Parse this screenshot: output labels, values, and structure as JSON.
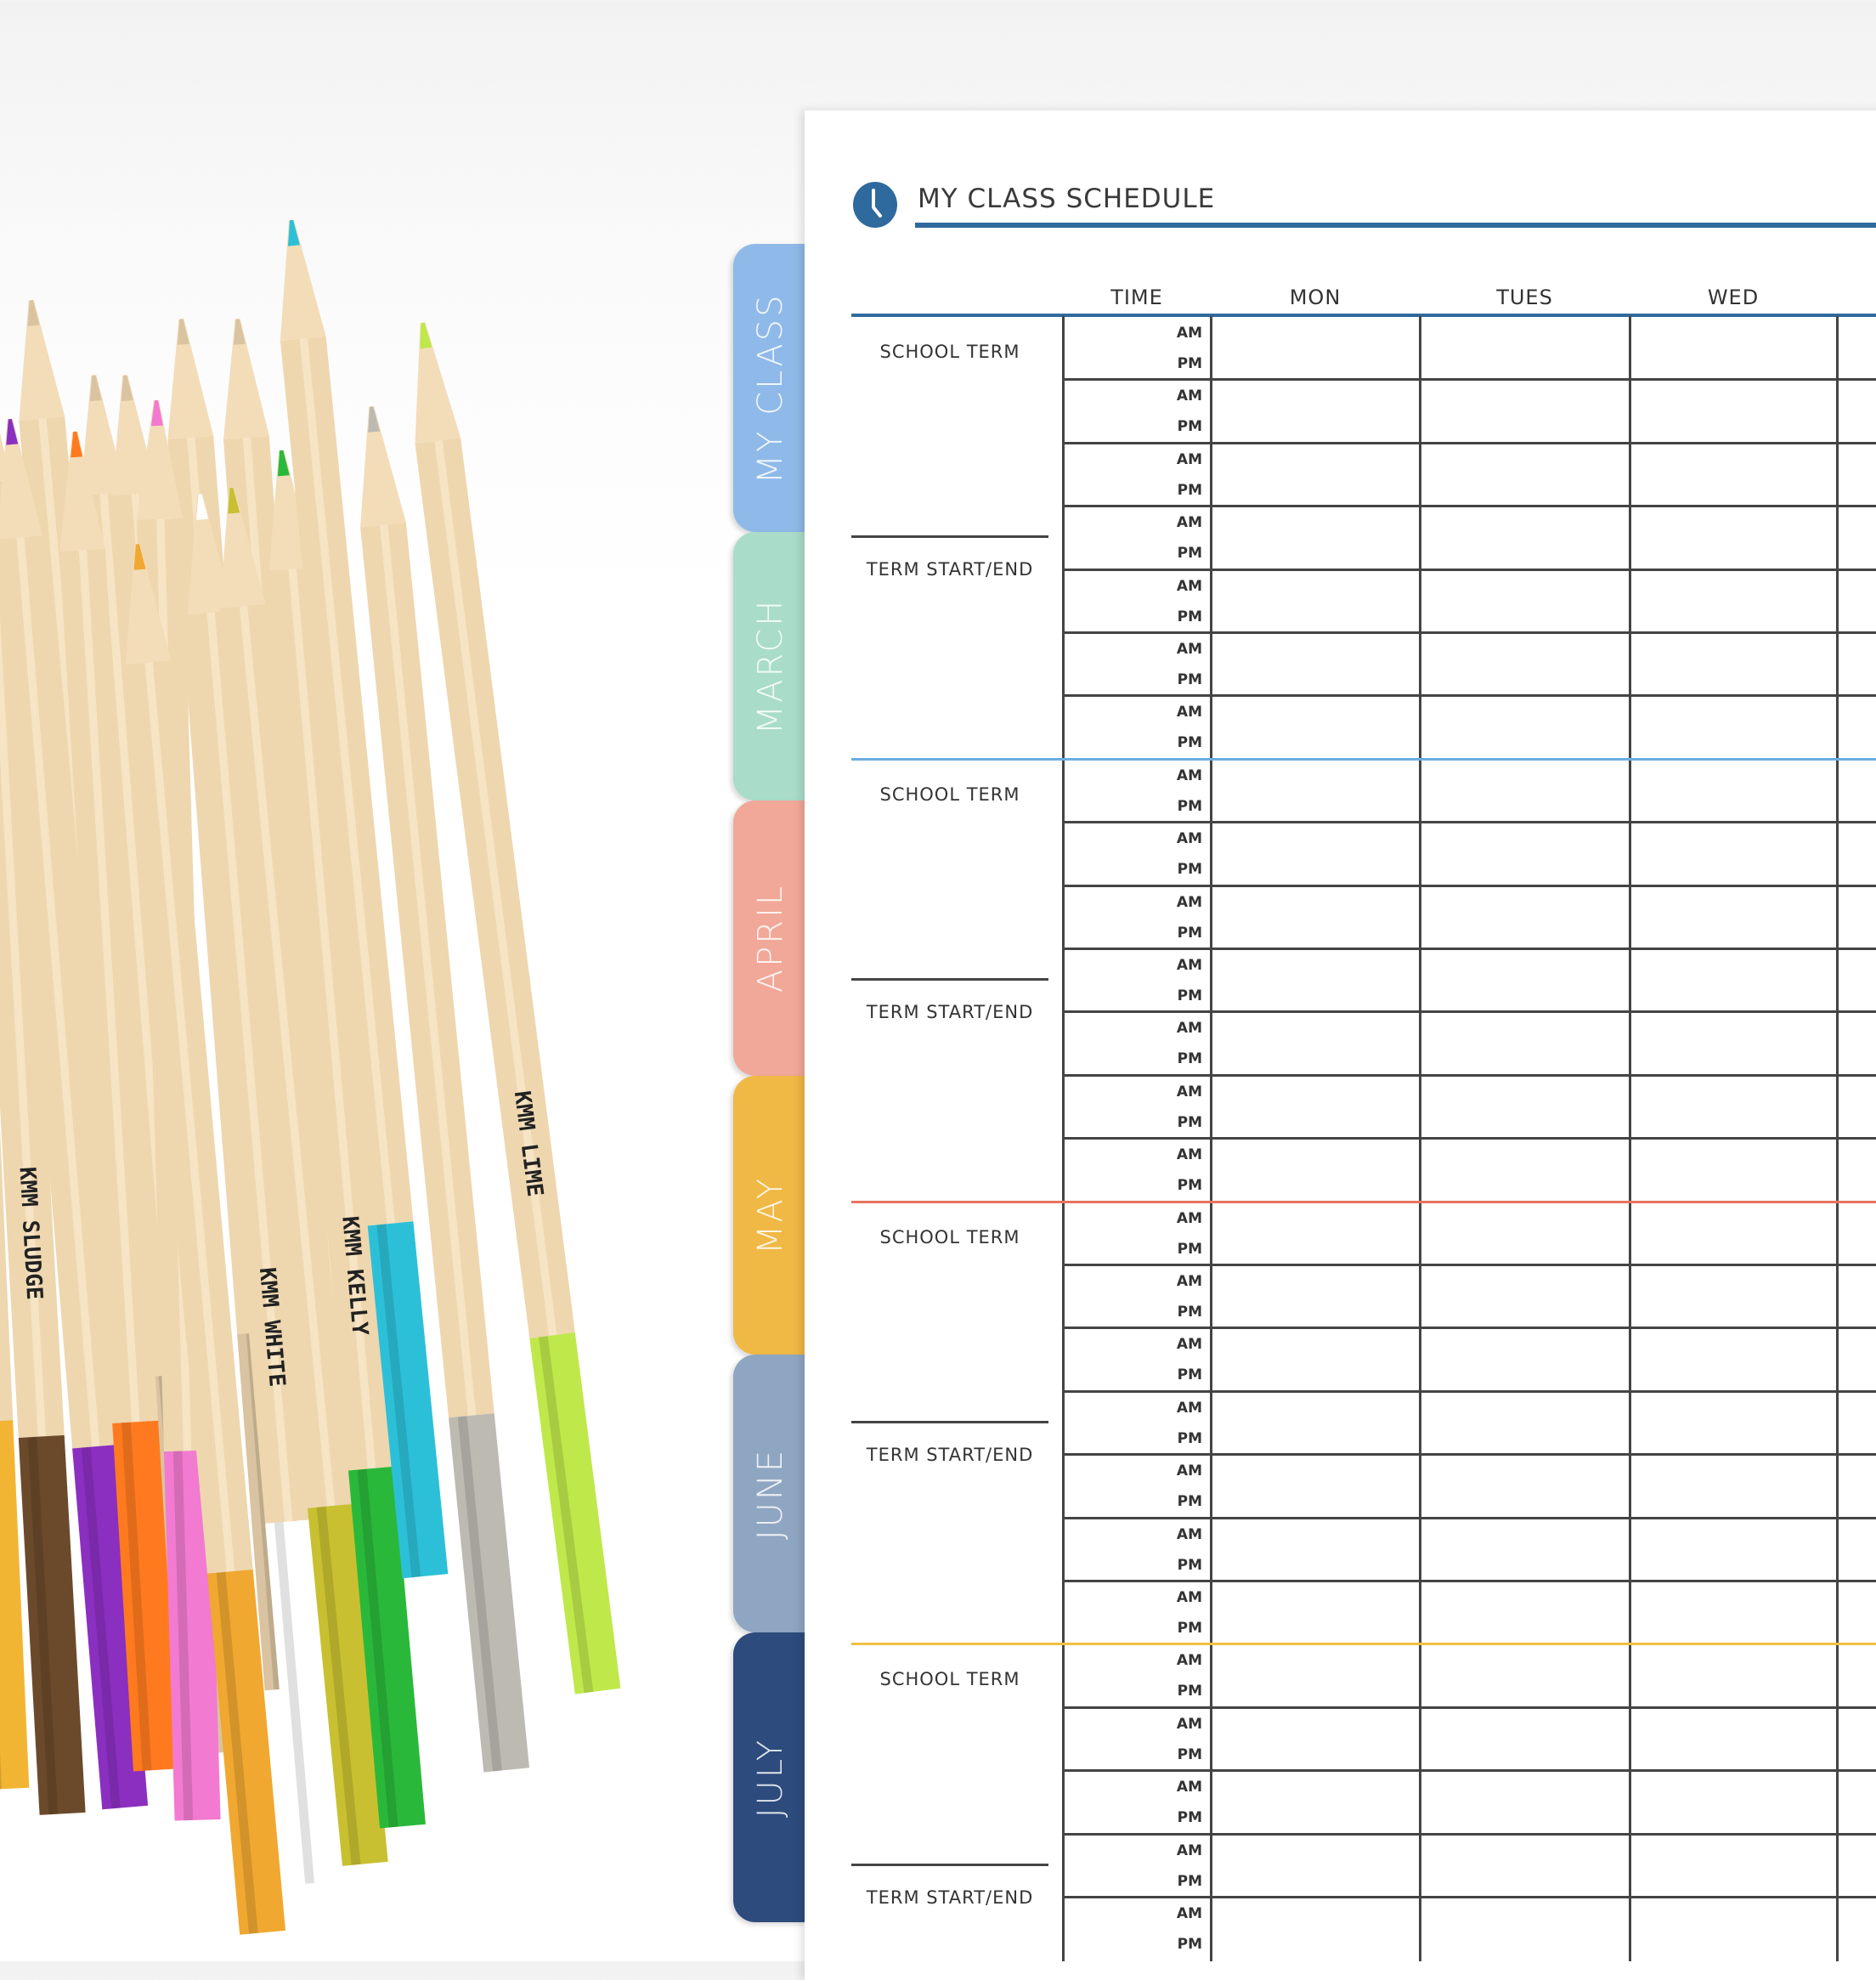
{
  "header": {
    "title": "MY CLASS SCHEDULE",
    "icon": "clock-icon",
    "accent": "#2f6a9e"
  },
  "columns": [
    "TIME",
    "MON",
    "TUES",
    "WED"
  ],
  "time_labels": {
    "am": "AM",
    "pm": "PM"
  },
  "sections": [
    {
      "school_label": "SCHOOL TERM",
      "term_label": "TERM START/END",
      "divider_color": "#6aaee0"
    },
    {
      "school_label": "SCHOOL TERM",
      "term_label": "TERM START/END",
      "divider_color": "#e8745a"
    },
    {
      "school_label": "SCHOOL TERM",
      "term_label": "TERM START/END",
      "divider_color": "#f0c040"
    },
    {
      "school_label": "SCHOOL TERM",
      "term_label": "TERM START/END",
      "divider_color": "#444444"
    }
  ],
  "tabs": [
    {
      "label": "MY CLASS",
      "color": "#8fb9e8"
    },
    {
      "label": "MARCH",
      "color": "#a9dcc9"
    },
    {
      "label": "APRIL",
      "color": "#f1a898"
    },
    {
      "label": "MAY",
      "color": "#f0b845"
    },
    {
      "label": "JUNE",
      "color": "#8fa6c2"
    },
    {
      "label": "JULY",
      "color": "#2d4b7c"
    }
  ],
  "pencils": [
    {
      "color": "#f2b533",
      "label": ""
    },
    {
      "color": "#6b4a2b",
      "label": "KMM SLUDGE"
    },
    {
      "color": "#8b2fc0",
      "label": ""
    },
    {
      "color": "#ff7a1f",
      "label": ""
    },
    {
      "color": "#f27ad0",
      "label": ""
    },
    {
      "color": "#f0a830",
      "label": ""
    },
    {
      "color": "#ffffff",
      "label": "KMM WHITE"
    },
    {
      "color": "#c8c030",
      "label": ""
    },
    {
      "color": "#2ab83a",
      "label": "KMM KELLY"
    },
    {
      "color": "#2cc0d8",
      "label": ""
    },
    {
      "color": "#bdbab2",
      "label": ""
    },
    {
      "color": "#bfe84a",
      "label": "KMM LIME"
    }
  ]
}
